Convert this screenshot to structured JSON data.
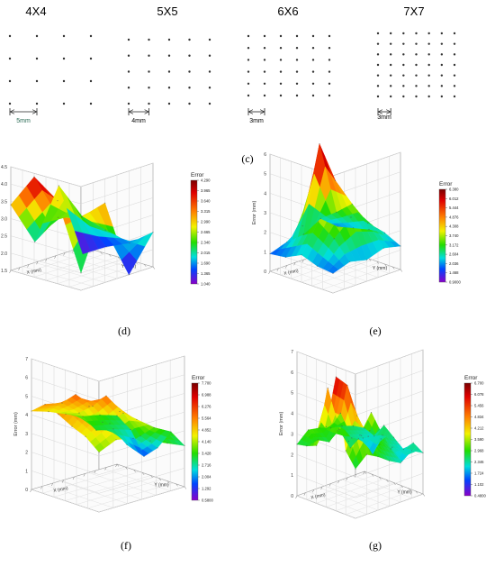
{
  "top_panel": {
    "caption": "(c)",
    "grids": [
      {
        "title": "4X4",
        "n": 4,
        "spacing": "5mm"
      },
      {
        "title": "5X5",
        "n": 5,
        "spacing": "4mm"
      },
      {
        "title": "6X6",
        "n": 6,
        "spacing": "3mm"
      },
      {
        "title": "7X7",
        "n": 7,
        "spacing": "3mm"
      }
    ]
  },
  "chart_data": [
    {
      "type": "surface3d",
      "caption": "(d)",
      "grid_size": 4,
      "legend_title": "Error",
      "zlabel": "Error (mm)",
      "xlabel": "X (mm)",
      "ylabel": "Y (mm)",
      "zlim": [
        1.5,
        4.5
      ],
      "zticks": [
        "1.5",
        "2.0",
        "2.5",
        "3.0",
        "3.5",
        "4.0",
        "4.5"
      ],
      "colorbar_ticks": [
        "4.290",
        "3.965",
        "3.640",
        "3.315",
        "2.990",
        "2.665",
        "2.340",
        "2.015",
        "1.690",
        "1.365",
        "1.040"
      ],
      "values": [
        [
          2.0,
          3.9,
          4.4,
          3.4
        ],
        [
          3.8,
          3.2,
          3.0,
          2.1
        ],
        [
          1.5,
          2.6,
          2.8,
          3.5
        ],
        [
          2.5,
          2.0,
          1.7,
          1.3
        ]
      ]
    },
    {
      "type": "surface3d",
      "caption": "(e)",
      "grid_size": 5,
      "legend_title": "Error",
      "zlabel": "Error (mm)",
      "xlabel": "X (mm)",
      "ylabel": "Y (mm)",
      "zlim": [
        0,
        6
      ],
      "zticks": [
        "0",
        "1",
        "2",
        "3",
        "4",
        "5",
        "6"
      ],
      "colorbar_ticks": [
        "6.380",
        "6.012",
        "5.444",
        "4.876",
        "4.308",
        "3.740",
        "3.172",
        "2.604",
        "2.036",
        "1.468",
        "0.9000"
      ],
      "values": [
        [
          1.0,
          1.1,
          1.4,
          1.0,
          0.9
        ],
        [
          1.3,
          2.2,
          2.8,
          2.3,
          1.2
        ],
        [
          1.1,
          3.0,
          4.6,
          6.2,
          1.3
        ],
        [
          1.4,
          2.4,
          3.1,
          2.4,
          1.8
        ],
        [
          1.2,
          1.6,
          1.5,
          1.3,
          1.1
        ]
      ]
    },
    {
      "type": "surface3d",
      "caption": "(f)",
      "grid_size": 6,
      "legend_title": "Error",
      "zlabel": "Error (mm)",
      "xlabel": "X (mm)",
      "ylabel": "Y (mm)",
      "zlim": [
        0,
        7
      ],
      "zticks": [
        "0",
        "1",
        "2",
        "3",
        "4",
        "5",
        "6",
        "7"
      ],
      "colorbar_ticks": [
        "7.700",
        "6.988",
        "6.276",
        "5.564",
        "4.852",
        "4.140",
        "3.428",
        "2.716",
        "2.004",
        "1.292",
        "0.5800"
      ],
      "values": [
        [
          3.2,
          3.8,
          4.1,
          4.5,
          4.8,
          4.2
        ],
        [
          3.6,
          4.3,
          4.9,
          5.3,
          4.6,
          3.9
        ],
        [
          3.4,
          4.6,
          5.2,
          4.4,
          3.8,
          3.5
        ],
        [
          3.0,
          3.9,
          4.0,
          3.2,
          2.6,
          3.1
        ],
        [
          2.6,
          3.2,
          2.5,
          1.8,
          2.4,
          2.9
        ],
        [
          2.2,
          2.7,
          1.6,
          0.9,
          2.1,
          2.6
        ]
      ]
    },
    {
      "type": "surface3d",
      "caption": "(g)",
      "grid_size": 7,
      "legend_title": "Error",
      "zlabel": "Error (mm)",
      "xlabel": "X (mm)",
      "ylabel": "Y (mm)",
      "zlim": [
        0,
        7
      ],
      "zticks": [
        "0",
        "1",
        "2",
        "3",
        "4",
        "5",
        "6",
        "7"
      ],
      "colorbar_ticks": [
        "6.700",
        "6.078",
        "5.456",
        "4.834",
        "4.212",
        "3.590",
        "2.968",
        "2.346",
        "1.724",
        "1.102",
        "0.4800"
      ],
      "values": [
        [
          2.4,
          3.1,
          6.5,
          3.9,
          2.8,
          2.6,
          2.5
        ],
        [
          2.9,
          4.6,
          5.9,
          3.5,
          5.4,
          2.7,
          3.0
        ],
        [
          2.6,
          3.4,
          3.1,
          2.8,
          3.2,
          2.4,
          2.9
        ],
        [
          2.2,
          2.8,
          3.3,
          2.9,
          2.1,
          3.6,
          2.7
        ],
        [
          1.9,
          2.4,
          2.7,
          3.8,
          2.5,
          2.2,
          2.6
        ],
        [
          2.3,
          1.6,
          2.1,
          2.5,
          1.4,
          2.0,
          2.4
        ],
        [
          2.0,
          2.3,
          1.8,
          2.2,
          2.6,
          1.9,
          2.1
        ]
      ]
    }
  ]
}
